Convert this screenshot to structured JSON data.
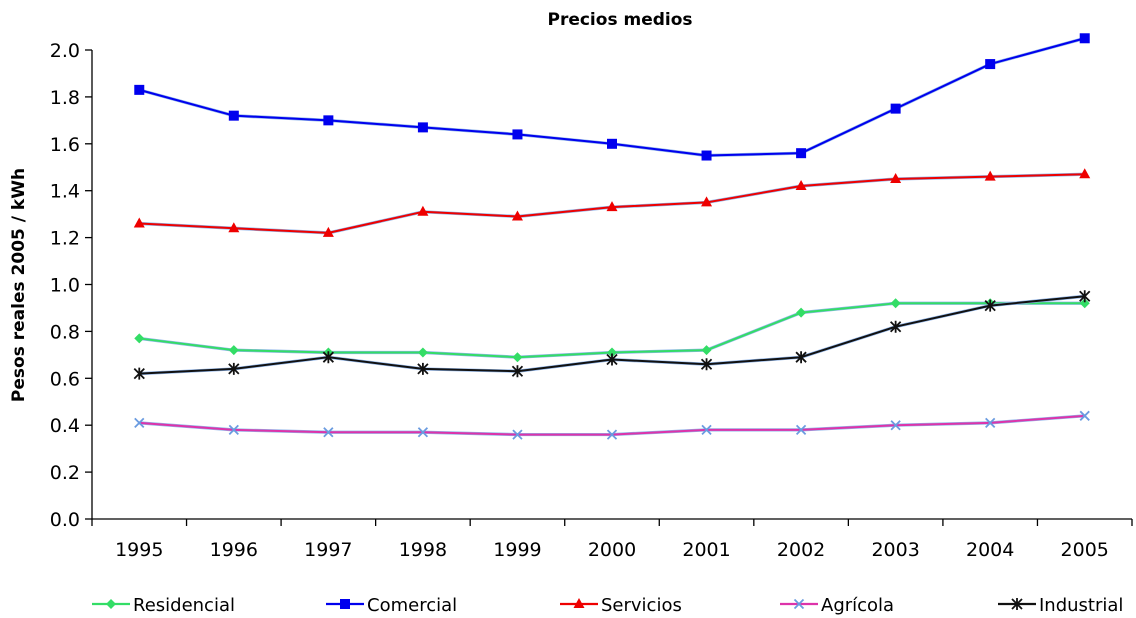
{
  "chart_data": {
    "type": "line",
    "title": "Precios medios",
    "xlabel": "",
    "ylabel": "Pesos reales 2005 / kWh",
    "ylim": [
      0,
      2.0
    ],
    "yticks": [
      "0.0",
      "0.2",
      "0.4",
      "0.6",
      "0.8",
      "1.0",
      "1.2",
      "1.4",
      "1.6",
      "1.8",
      "2.0"
    ],
    "categories": [
      "1995",
      "1996",
      "1997",
      "1998",
      "1999",
      "2000",
      "2001",
      "2002",
      "2003",
      "2004",
      "2005"
    ],
    "grid": false,
    "legend_position": "bottom",
    "series": [
      {
        "name": "Residencial",
        "color": "#33dd66",
        "marker": "diamond",
        "values": [
          0.77,
          0.72,
          0.71,
          0.71,
          0.69,
          0.71,
          0.72,
          0.88,
          0.92,
          0.92,
          0.92
        ]
      },
      {
        "name": "Comercial",
        "color": "#0000ee",
        "marker": "square",
        "values": [
          1.83,
          1.72,
          1.7,
          1.67,
          1.64,
          1.6,
          1.55,
          1.56,
          1.75,
          1.94,
          2.05
        ]
      },
      {
        "name": "Servicios",
        "color": "#ee0000",
        "marker": "triangle",
        "values": [
          1.26,
          1.24,
          1.22,
          1.31,
          1.29,
          1.33,
          1.35,
          1.42,
          1.45,
          1.46,
          1.47
        ]
      },
      {
        "name": "Agrícola",
        "color": "#dd33aa",
        "marker": "x",
        "values": [
          0.41,
          0.38,
          0.37,
          0.37,
          0.36,
          0.36,
          0.38,
          0.38,
          0.4,
          0.41,
          0.44
        ]
      },
      {
        "name": "Industrial",
        "color": "#111111",
        "marker": "star",
        "values": [
          0.62,
          0.64,
          0.69,
          0.64,
          0.63,
          0.68,
          0.66,
          0.69,
          0.82,
          0.91,
          0.95
        ]
      }
    ]
  }
}
